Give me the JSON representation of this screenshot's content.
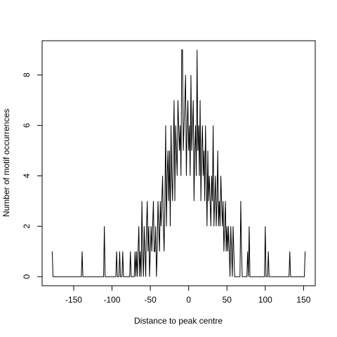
{
  "chart_data": {
    "type": "line",
    "xlabel": "Distance to peak centre",
    "ylabel": "Number of motif occurrences",
    "color": "#000000",
    "xlim": [
      -191.2,
      165.2
    ],
    "ylim": [
      -0.36,
      9.36
    ],
    "xticks": [
      -150,
      -100,
      -50,
      0,
      50,
      100,
      150
    ],
    "yticks": [
      0,
      2,
      4,
      6,
      8
    ],
    "x": [
      -178,
      -177,
      -176,
      -175,
      -174,
      -173,
      -172,
      -171,
      -170,
      -169,
      -168,
      -167,
      -166,
      -165,
      -164,
      -163,
      -162,
      -161,
      -160,
      -159,
      -158,
      -157,
      -156,
      -155,
      -154,
      -153,
      -152,
      -151,
      -150,
      -149,
      -148,
      -147,
      -146,
      -145,
      -144,
      -143,
      -142,
      -141,
      -140,
      -139,
      -138,
      -137,
      -136,
      -135,
      -134,
      -133,
      -132,
      -131,
      -130,
      -129,
      -128,
      -127,
      -126,
      -125,
      -124,
      -123,
      -122,
      -121,
      -120,
      -119,
      -118,
      -117,
      -116,
      -115,
      -114,
      -113,
      -112,
      -111,
      -110,
      -109,
      -108,
      -107,
      -106,
      -105,
      -104,
      -103,
      -102,
      -101,
      -100,
      -99,
      -98,
      -97,
      -96,
      -95,
      -94,
      -93,
      -92,
      -91,
      -90,
      -89,
      -88,
      -87,
      -86,
      -85,
      -84,
      -83,
      -82,
      -81,
      -80,
      -79,
      -78,
      -77,
      -76,
      -75,
      -74,
      -73,
      -72,
      -71,
      -70,
      -69,
      -68,
      -67,
      -66,
      -65,
      -64,
      -63,
      -62,
      -61,
      -60,
      -59,
      -58,
      -57,
      -56,
      -55,
      -54,
      -53,
      -52,
      -51,
      -50,
      -49,
      -48,
      -47,
      -46,
      -45,
      -44,
      -43,
      -42,
      -41,
      -40,
      -39,
      -38,
      -37,
      -36,
      -35,
      -34,
      -33,
      -32,
      -31,
      -30,
      -29,
      -28,
      -27,
      -26,
      -25,
      -24,
      -23,
      -22,
      -21,
      -20,
      -19,
      -18,
      -17,
      -16,
      -15,
      -14,
      -13,
      -12,
      -11,
      -10,
      -9,
      -8,
      -7,
      -6,
      -5,
      -4,
      -3,
      -2,
      -1,
      0,
      1,
      2,
      3,
      4,
      5,
      6,
      7,
      8,
      9,
      10,
      11,
      12,
      13,
      14,
      15,
      16,
      17,
      18,
      19,
      20,
      21,
      22,
      23,
      24,
      25,
      26,
      27,
      28,
      29,
      30,
      31,
      32,
      33,
      34,
      35,
      36,
      37,
      38,
      39,
      40,
      41,
      42,
      43,
      44,
      45,
      46,
      47,
      48,
      49,
      50,
      51,
      52,
      53,
      54,
      55,
      56,
      57,
      58,
      59,
      60,
      61,
      62,
      63,
      64,
      65,
      66,
      67,
      68,
      69,
      70,
      71,
      72,
      73,
      74,
      75,
      76,
      77,
      78,
      79,
      80,
      81,
      82,
      83,
      84,
      85,
      86,
      87,
      88,
      89,
      90,
      91,
      92,
      93,
      94,
      95,
      96,
      97,
      98,
      99,
      100,
      101,
      102,
      103,
      104,
      105,
      106,
      107,
      108,
      109,
      110,
      111,
      112,
      113,
      114,
      115,
      116,
      117,
      118,
      119,
      120,
      121,
      122,
      123,
      124,
      125,
      126,
      127,
      128,
      129,
      130,
      131,
      132,
      133,
      134,
      135,
      136,
      137,
      138,
      139,
      140,
      141,
      142,
      143,
      144,
      145,
      146,
      147,
      148,
      149,
      150,
      151,
      152
    ],
    "values": [
      1,
      0,
      0,
      0,
      0,
      0,
      0,
      0,
      0,
      0,
      0,
      0,
      0,
      0,
      0,
      0,
      0,
      0,
      0,
      0,
      0,
      0,
      0,
      0,
      0,
      0,
      0,
      0,
      0,
      0,
      0,
      0,
      0,
      0,
      0,
      0,
      0,
      0,
      0,
      1,
      0,
      0,
      0,
      0,
      0,
      0,
      0,
      0,
      0,
      0,
      0,
      0,
      0,
      0,
      0,
      0,
      0,
      0,
      0,
      0,
      0,
      0,
      0,
      0,
      0,
      0,
      0,
      0,
      2,
      0,
      0,
      0,
      0,
      0,
      0,
      0,
      0,
      0,
      0,
      0,
      0,
      0,
      0,
      0,
      1,
      0,
      0,
      0,
      1,
      0,
      0,
      0,
      1,
      0,
      0,
      0,
      0,
      0,
      0,
      0,
      0,
      0,
      1,
      0,
      0,
      0,
      0,
      0,
      1,
      0,
      1,
      0,
      1,
      2,
      0,
      1,
      0,
      3,
      1,
      0,
      2,
      1,
      0,
      2,
      3,
      1,
      2,
      0,
      1,
      2,
      1,
      2,
      3,
      1,
      1,
      2,
      0,
      1,
      3,
      2,
      1,
      3,
      2,
      3,
      4,
      2,
      1,
      3,
      6,
      2,
      4,
      5,
      3,
      5,
      2,
      6,
      4,
      3,
      5,
      7,
      3,
      6,
      5,
      4,
      7,
      6,
      5,
      6,
      4,
      9,
      9,
      5,
      6,
      7,
      8,
      4,
      6,
      7,
      5,
      6,
      4,
      8,
      5,
      6,
      7,
      3,
      5,
      6,
      4,
      9,
      5,
      6,
      4,
      7,
      3,
      5,
      6,
      4,
      5,
      3,
      6,
      4,
      2,
      5,
      3,
      4,
      3,
      2,
      4,
      3,
      6,
      2,
      3,
      4,
      2,
      3,
      5,
      2,
      3,
      2,
      4,
      3,
      2,
      3,
      1,
      2,
      3,
      1,
      2,
      1,
      2,
      1,
      0,
      2,
      1,
      0,
      2,
      1,
      0,
      0,
      0,
      0,
      0,
      0,
      0,
      0,
      3,
      1,
      0,
      0,
      0,
      0,
      0,
      0,
      0,
      1,
      0,
      2,
      0,
      0,
      0,
      0,
      0,
      0,
      0,
      0,
      0,
      0,
      0,
      0,
      0,
      0,
      0,
      0,
      0,
      0,
      0,
      0,
      2,
      0,
      0,
      0,
      1,
      0,
      0,
      0,
      0,
      0,
      0,
      0,
      0,
      0,
      0,
      0,
      0,
      0,
      0,
      0,
      0,
      0,
      0,
      0,
      0,
      0,
      0,
      0,
      0,
      0,
      0,
      0,
      1,
      0,
      0,
      0,
      0,
      0,
      0,
      0,
      0,
      0,
      0,
      0,
      0,
      0,
      0,
      0,
      0,
      0,
      0,
      0,
      1
    ]
  }
}
